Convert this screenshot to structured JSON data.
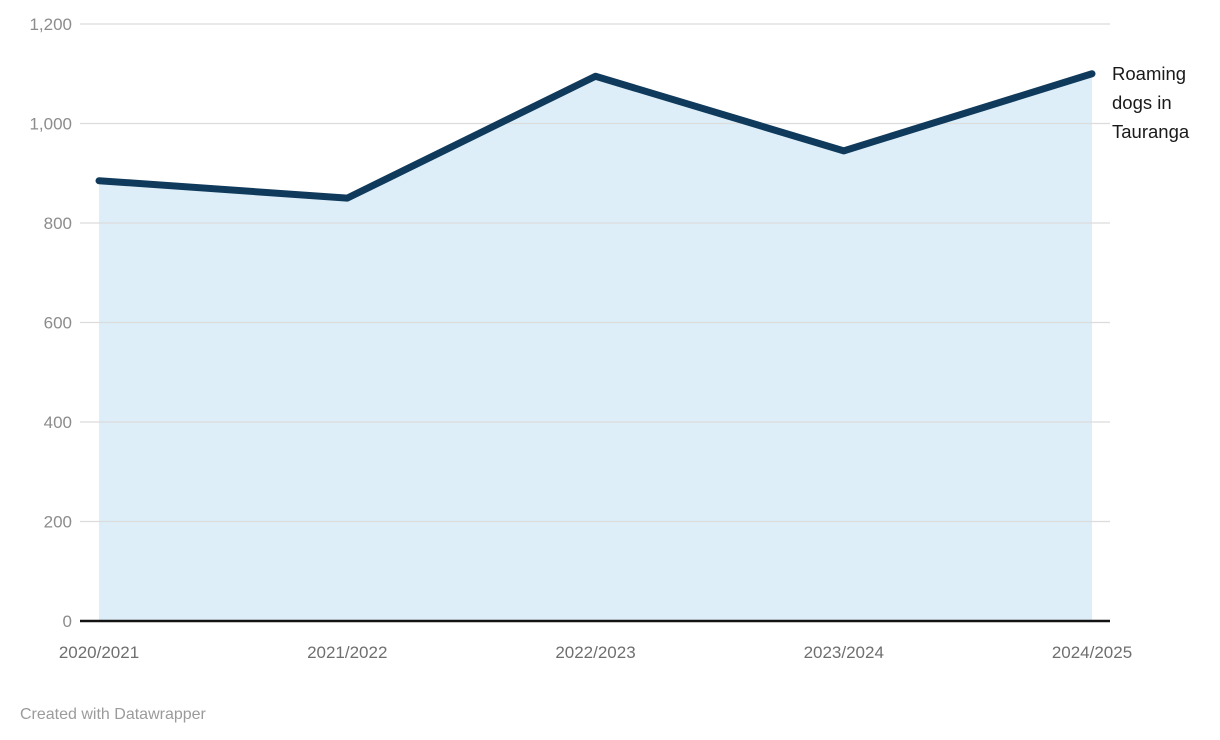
{
  "chart_data": {
    "type": "area",
    "title": "",
    "xlabel": "",
    "ylabel": "",
    "categories": [
      "2020/2021",
      "2021/2022",
      "2022/2023",
      "2023/2024",
      "2024/2025"
    ],
    "series": [
      {
        "name": "Roaming dogs in Tauranga",
        "values": [
          885,
          850,
          1095,
          945,
          1100
        ]
      }
    ],
    "ylim": [
      0,
      1200
    ],
    "y_ticks": [
      0,
      200,
      400,
      600,
      800,
      1000,
      1200
    ],
    "y_tick_labels": [
      "0",
      "200",
      "400",
      "600",
      "800",
      "1,000",
      "1,200"
    ],
    "grid": "horizontal",
    "legend_position": "direct-label-right",
    "line_label": "Roaming dogs in Tauranga",
    "line_label_lines": [
      "Roaming",
      "dogs in",
      "Tauranga"
    ],
    "colors": {
      "line": "#103a5c",
      "fill": "#ddeef9",
      "grid": "#dcdcdc",
      "axis_line": "#131313",
      "y_tick_text": "#8c8c8c",
      "x_tick_text": "#6f6f6f",
      "label_text": "#1a1a1a"
    }
  },
  "footer": {
    "credit": "Created with Datawrapper"
  }
}
